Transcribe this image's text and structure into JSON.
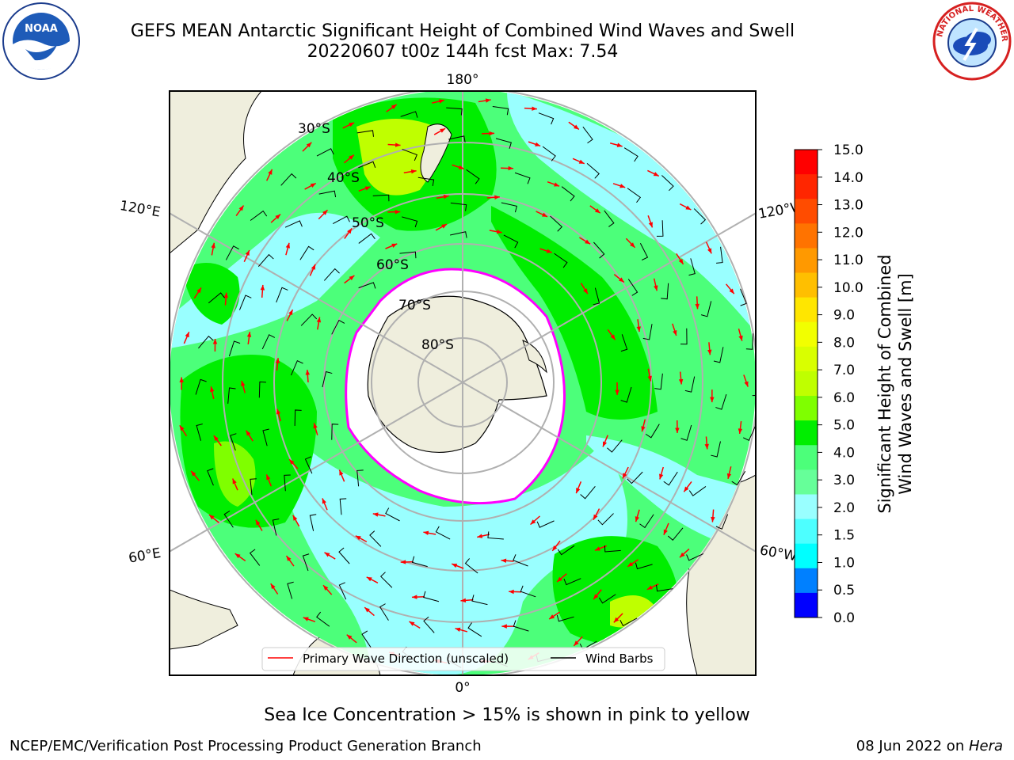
{
  "header": {
    "title_line1": "GEFS MEAN Antarctic Significant Height of Combined Wind Waves and Swell",
    "title_line2": "20220607 t00z 144h fcst   Max: 7.54"
  },
  "logos": {
    "left": {
      "name": "noaa-logo",
      "text": "NOAA",
      "ring_text": "NATIONAL OCEANIC AND ATMOSPHERIC ADMINISTRATION · U.S. DEPARTMENT OF COMMERCE"
    },
    "right": {
      "name": "nws-logo",
      "ring_text": "NATIONAL WEATHER SERVICE"
    }
  },
  "map": {
    "projection": "south-polar-stereographic",
    "longitude_labels": {
      "top": "180°",
      "bottom": "0°",
      "upper_left": "120°E",
      "lower_left": "60°E",
      "upper_right": "120°W",
      "lower_right": "60°W"
    },
    "latitude_labels": [
      "30°S",
      "40°S",
      "50°S",
      "60°S",
      "70°S",
      "80°S"
    ],
    "legend": [
      {
        "label": "Primary Wave Direction (unscaled)",
        "color": "#ff0000"
      },
      {
        "label": "Wind Barbs",
        "color": "#000000"
      }
    ],
    "colors": {
      "land": "#efeedd",
      "ocean_edge": "#ffffff",
      "ice_edge": "#ff00ff",
      "grid": "#b0b0b0"
    }
  },
  "colorbar": {
    "label_line1": "Significant Height of Combined",
    "label_line2": "Wind Waves and Swell [m]",
    "ticks": [
      "15.0",
      "14.0",
      "13.0",
      "12.0",
      "11.0",
      "10.0",
      "9.0",
      "8.0",
      "7.0",
      "6.0",
      "5.0",
      "4.0",
      "3.0",
      "2.0",
      "1.5",
      "1.0",
      "0.5",
      "0.0"
    ],
    "colors_top_to_bottom": [
      "#ff0000",
      "#ff2600",
      "#ff4c00",
      "#ff7300",
      "#ff9900",
      "#ffbf00",
      "#ffe600",
      "#f2ff00",
      "#d9ff00",
      "#bfff00",
      "#7fff00",
      "#00ee00",
      "#4cff7a",
      "#66ff99",
      "#99ffff",
      "#4dffff",
      "#00ffff",
      "#0080ff",
      "#0000ff"
    ]
  },
  "notes": {
    "ice": "Sea Ice Concentration > 15% is shown in pink to yellow"
  },
  "footer": {
    "left": "NCEP/EMC/Verification Post Processing Product Generation Branch",
    "right_date": "08 Jun 2022 on ",
    "right_host": "Hera"
  }
}
